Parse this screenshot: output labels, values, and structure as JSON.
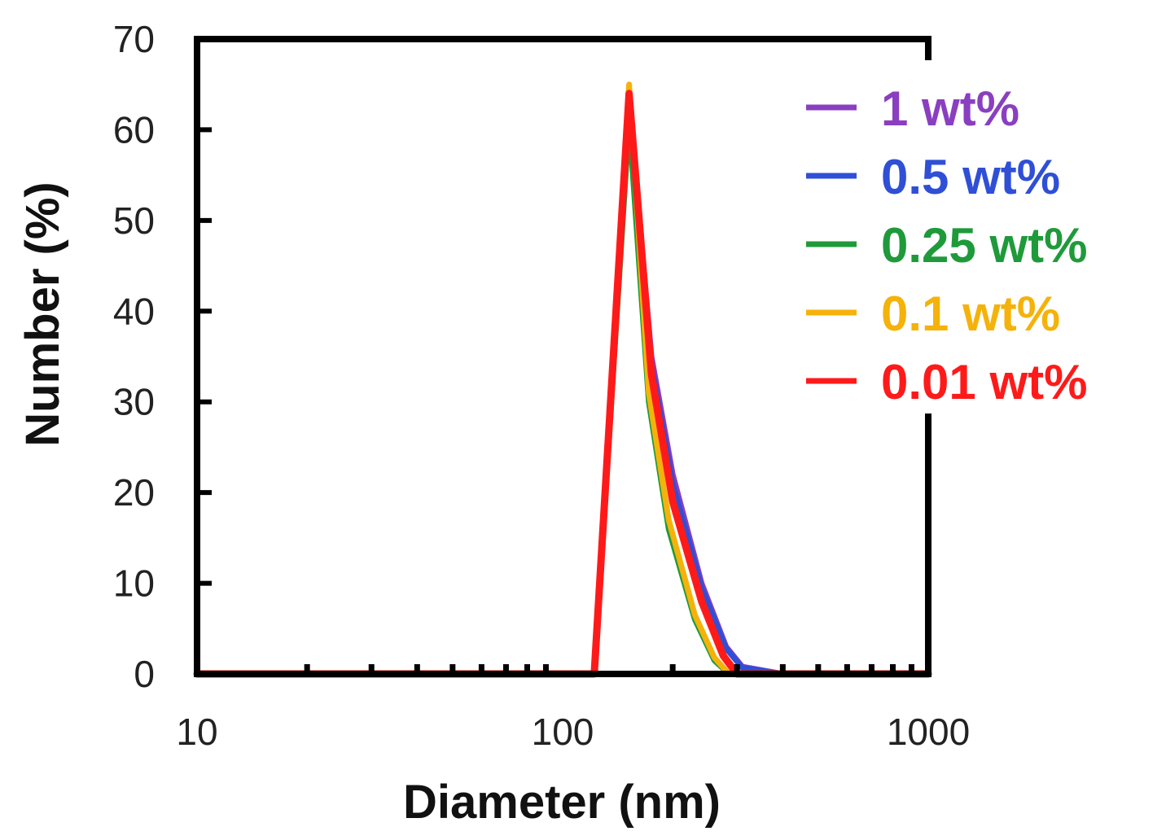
{
  "chart_data": {
    "type": "line",
    "title": "",
    "xlabel": "Diameter (nm)",
    "ylabel": "Number (%)",
    "xscale": "log",
    "xlim": [
      10,
      1000
    ],
    "ylim": [
      0,
      70
    ],
    "xticks": [
      10,
      100,
      1000
    ],
    "xtick_labels": [
      "10",
      "100",
      "1000"
    ],
    "yticks": [
      0,
      10,
      20,
      30,
      40,
      50,
      60,
      70
    ],
    "ytick_labels": [
      "0",
      "10",
      "20",
      "30",
      "40",
      "50",
      "60",
      "70"
    ],
    "grid": false,
    "legend_position": "right",
    "series": [
      {
        "name": "1 wt%",
        "color": "#8a3fc0",
        "x": [
          10,
          122,
          152,
          175,
          200,
          240,
          280,
          310,
          400,
          1000
        ],
        "y": [
          0,
          0,
          63,
          35,
          22,
          10,
          3,
          0.8,
          0,
          0
        ]
      },
      {
        "name": "0.5 wt%",
        "color": "#2f4fd6",
        "x": [
          10,
          122,
          152,
          175,
          200,
          240,
          280,
          310,
          400,
          1000
        ],
        "y": [
          0,
          0,
          62,
          34,
          21,
          9.5,
          2.8,
          0.7,
          0,
          0
        ]
      },
      {
        "name": "0.25 wt%",
        "color": "#1f9a3a",
        "x": [
          10,
          122,
          152,
          172,
          195,
          230,
          260,
          285,
          1000
        ],
        "y": [
          0,
          0,
          61,
          30,
          16,
          6,
          1.5,
          0,
          0
        ]
      },
      {
        "name": "0.1 wt%",
        "color": "#f5b20a",
        "x": [
          10,
          122,
          152,
          172,
          195,
          230,
          260,
          285,
          1000
        ],
        "y": [
          0,
          0,
          65,
          31,
          17,
          6.5,
          1.8,
          0,
          0
        ]
      },
      {
        "name": "0.01 wt%",
        "color": "#ff1a1a",
        "x": [
          10,
          122,
          152,
          175,
          200,
          240,
          275,
          300,
          1000
        ],
        "y": [
          0,
          0,
          64,
          33,
          19,
          8,
          2,
          0,
          0
        ]
      }
    ]
  }
}
